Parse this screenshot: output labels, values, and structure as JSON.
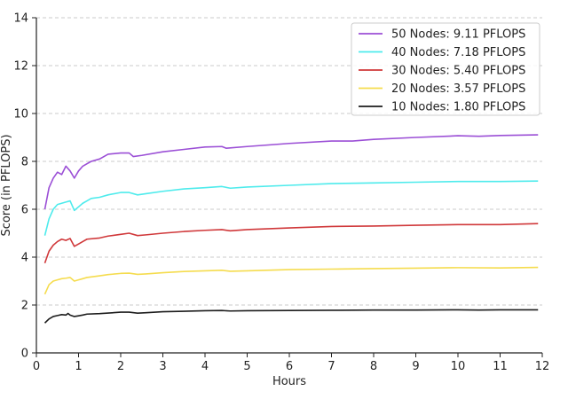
{
  "chart_data": {
    "type": "line",
    "title": "",
    "xlabel": "Hours",
    "ylabel": "Score (in PFLOPS)",
    "xlim": [
      0,
      12
    ],
    "ylim": [
      0,
      14
    ],
    "xticks": [
      "0",
      "1",
      "2",
      "3",
      "4",
      "5",
      "6",
      "7",
      "8",
      "9",
      "10",
      "11",
      "12"
    ],
    "yticks": [
      "0",
      "2",
      "4",
      "6",
      "8",
      "10",
      "12",
      "14"
    ],
    "grid": "horizontal-dashed",
    "legend_position": "top-right",
    "series": [
      {
        "name": "50 Nodes: 9.11 PFLOPS",
        "color": "#9b4fd6",
        "points": [
          [
            0.2,
            6.0
          ],
          [
            0.3,
            6.9
          ],
          [
            0.4,
            7.3
          ],
          [
            0.5,
            7.55
          ],
          [
            0.6,
            7.45
          ],
          [
            0.7,
            7.8
          ],
          [
            0.8,
            7.6
          ],
          [
            0.9,
            7.3
          ],
          [
            1.0,
            7.6
          ],
          [
            1.1,
            7.8
          ],
          [
            1.2,
            7.9
          ],
          [
            1.3,
            8.0
          ],
          [
            1.5,
            8.1
          ],
          [
            1.7,
            8.3
          ],
          [
            2.0,
            8.35
          ],
          [
            2.2,
            8.35
          ],
          [
            2.3,
            8.2
          ],
          [
            2.5,
            8.25
          ],
          [
            3.0,
            8.4
          ],
          [
            3.5,
            8.5
          ],
          [
            4.0,
            8.6
          ],
          [
            4.4,
            8.62
          ],
          [
            4.5,
            8.55
          ],
          [
            5.0,
            8.62
          ],
          [
            6.0,
            8.75
          ],
          [
            7.0,
            8.85
          ],
          [
            7.5,
            8.85
          ],
          [
            8.0,
            8.92
          ],
          [
            9.0,
            9.0
          ],
          [
            10.0,
            9.07
          ],
          [
            10.5,
            9.05
          ],
          [
            11.0,
            9.08
          ],
          [
            11.9,
            9.11
          ]
        ]
      },
      {
        "name": "40 Nodes: 7.18 PFLOPS",
        "color": "#4eebec",
        "points": [
          [
            0.2,
            4.9
          ],
          [
            0.3,
            5.6
          ],
          [
            0.4,
            6.0
          ],
          [
            0.5,
            6.2
          ],
          [
            0.6,
            6.25
          ],
          [
            0.7,
            6.3
          ],
          [
            0.8,
            6.35
          ],
          [
            0.9,
            5.95
          ],
          [
            1.0,
            6.1
          ],
          [
            1.1,
            6.25
          ],
          [
            1.2,
            6.35
          ],
          [
            1.3,
            6.45
          ],
          [
            1.5,
            6.5
          ],
          [
            1.7,
            6.6
          ],
          [
            2.0,
            6.7
          ],
          [
            2.2,
            6.7
          ],
          [
            2.4,
            6.6
          ],
          [
            2.6,
            6.65
          ],
          [
            3.0,
            6.75
          ],
          [
            3.5,
            6.85
          ],
          [
            4.0,
            6.9
          ],
          [
            4.4,
            6.95
          ],
          [
            4.6,
            6.88
          ],
          [
            5.0,
            6.93
          ],
          [
            6.0,
            7.0
          ],
          [
            7.0,
            7.07
          ],
          [
            8.0,
            7.1
          ],
          [
            9.0,
            7.13
          ],
          [
            10.0,
            7.16
          ],
          [
            11.0,
            7.16
          ],
          [
            11.9,
            7.18
          ]
        ]
      },
      {
        "name": "30 Nodes: 5.40 PFLOPS",
        "color": "#d0383a",
        "points": [
          [
            0.2,
            3.75
          ],
          [
            0.3,
            4.25
          ],
          [
            0.4,
            4.5
          ],
          [
            0.5,
            4.65
          ],
          [
            0.6,
            4.75
          ],
          [
            0.7,
            4.7
          ],
          [
            0.8,
            4.78
          ],
          [
            0.9,
            4.45
          ],
          [
            1.0,
            4.55
          ],
          [
            1.1,
            4.65
          ],
          [
            1.2,
            4.75
          ],
          [
            1.5,
            4.8
          ],
          [
            1.7,
            4.88
          ],
          [
            2.0,
            4.95
          ],
          [
            2.2,
            5.0
          ],
          [
            2.4,
            4.9
          ],
          [
            2.6,
            4.93
          ],
          [
            3.0,
            5.0
          ],
          [
            3.5,
            5.07
          ],
          [
            4.0,
            5.12
          ],
          [
            4.4,
            5.15
          ],
          [
            4.6,
            5.1
          ],
          [
            5.0,
            5.15
          ],
          [
            6.0,
            5.22
          ],
          [
            7.0,
            5.28
          ],
          [
            8.0,
            5.3
          ],
          [
            9.0,
            5.33
          ],
          [
            10.0,
            5.36
          ],
          [
            11.0,
            5.36
          ],
          [
            11.9,
            5.4
          ]
        ]
      },
      {
        "name": "20 Nodes: 3.57 PFLOPS",
        "color": "#f5dc4e",
        "points": [
          [
            0.2,
            2.45
          ],
          [
            0.3,
            2.85
          ],
          [
            0.4,
            3.0
          ],
          [
            0.5,
            3.05
          ],
          [
            0.6,
            3.1
          ],
          [
            0.7,
            3.12
          ],
          [
            0.8,
            3.15
          ],
          [
            0.9,
            3.0
          ],
          [
            1.0,
            3.05
          ],
          [
            1.1,
            3.1
          ],
          [
            1.2,
            3.15
          ],
          [
            1.5,
            3.22
          ],
          [
            1.7,
            3.27
          ],
          [
            2.0,
            3.32
          ],
          [
            2.2,
            3.33
          ],
          [
            2.4,
            3.28
          ],
          [
            2.6,
            3.3
          ],
          [
            3.0,
            3.35
          ],
          [
            3.5,
            3.4
          ],
          [
            4.0,
            3.43
          ],
          [
            4.4,
            3.45
          ],
          [
            4.6,
            3.41
          ],
          [
            5.0,
            3.43
          ],
          [
            6.0,
            3.48
          ],
          [
            7.0,
            3.5
          ],
          [
            8.0,
            3.52
          ],
          [
            9.0,
            3.54
          ],
          [
            10.0,
            3.56
          ],
          [
            11.0,
            3.55
          ],
          [
            11.9,
            3.57
          ]
        ]
      },
      {
        "name": "10 Nodes: 1.80 PFLOPS",
        "color": "#1c1c1c",
        "points": [
          [
            0.2,
            1.25
          ],
          [
            0.3,
            1.42
          ],
          [
            0.4,
            1.52
          ],
          [
            0.5,
            1.56
          ],
          [
            0.6,
            1.6
          ],
          [
            0.7,
            1.58
          ],
          [
            0.75,
            1.65
          ],
          [
            0.8,
            1.58
          ],
          [
            0.9,
            1.52
          ],
          [
            1.0,
            1.55
          ],
          [
            1.1,
            1.58
          ],
          [
            1.2,
            1.62
          ],
          [
            1.5,
            1.64
          ],
          [
            2.0,
            1.7
          ],
          [
            2.2,
            1.7
          ],
          [
            2.4,
            1.66
          ],
          [
            2.6,
            1.68
          ],
          [
            3.0,
            1.72
          ],
          [
            3.5,
            1.74
          ],
          [
            4.0,
            1.76
          ],
          [
            4.4,
            1.77
          ],
          [
            4.6,
            1.75
          ],
          [
            5.0,
            1.76
          ],
          [
            6.0,
            1.77
          ],
          [
            7.0,
            1.78
          ],
          [
            8.0,
            1.79
          ],
          [
            9.0,
            1.79
          ],
          [
            10.0,
            1.8
          ],
          [
            10.5,
            1.79
          ],
          [
            11.0,
            1.8
          ],
          [
            11.9,
            1.8
          ]
        ]
      }
    ]
  }
}
